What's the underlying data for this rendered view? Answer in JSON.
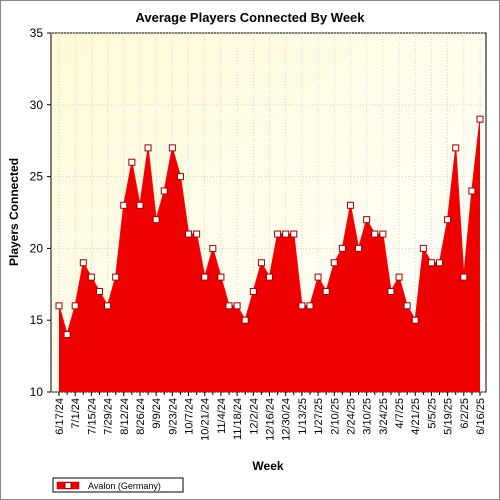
{
  "chart_data": {
    "type": "area",
    "title": "Average Players Connected By Week",
    "xlabel": "Week",
    "ylabel": "Players Connected",
    "ylim": [
      10,
      35
    ],
    "yticks": [
      10,
      15,
      20,
      25,
      30,
      35
    ],
    "grid": true,
    "legend_position": "bottom-left",
    "x_tick_labels": [
      "6/17/24",
      "7/1/24",
      "7/15/24",
      "7/29/24",
      "8/12/24",
      "8/26/24",
      "9/9/24",
      "9/23/24",
      "10/7/24",
      "10/21/24",
      "11/4/24",
      "11/18/24",
      "12/2/24",
      "12/16/24",
      "12/30/24",
      "1/13/25",
      "1/27/25",
      "2/10/25",
      "2/24/25",
      "3/10/25",
      "3/24/25",
      "4/7/25",
      "4/21/25",
      "5/5/25",
      "5/19/25",
      "6/2/25",
      "6/16/25"
    ],
    "x": [
      "6/17/24",
      "6/24/24",
      "7/1/24",
      "7/8/24",
      "7/15/24",
      "7/22/24",
      "7/29/24",
      "8/5/24",
      "8/12/24",
      "8/19/24",
      "8/26/24",
      "9/2/24",
      "9/9/24",
      "9/16/24",
      "9/23/24",
      "9/30/24",
      "10/7/24",
      "10/14/24",
      "10/21/24",
      "10/28/24",
      "11/4/24",
      "11/11/24",
      "11/18/24",
      "11/25/24",
      "12/2/24",
      "12/9/24",
      "12/16/24",
      "12/23/24",
      "12/30/24",
      "1/6/25",
      "1/13/25",
      "1/20/25",
      "1/27/25",
      "2/3/25",
      "2/10/25",
      "2/17/25",
      "2/24/25",
      "3/3/25",
      "3/10/25",
      "3/17/25",
      "3/24/25",
      "3/31/25",
      "4/7/25",
      "4/14/25",
      "4/21/25",
      "4/28/25",
      "5/5/25",
      "5/12/25",
      "5/19/25",
      "5/26/25",
      "6/2/25",
      "6/9/25",
      "6/16/25"
    ],
    "series": [
      {
        "name": "Avalon (Germany)",
        "color": "#ff0000",
        "fill": "#ee0000",
        "values": [
          16,
          14,
          16,
          19,
          18,
          17,
          16,
          18,
          23,
          26,
          23,
          27,
          22,
          24,
          27,
          25,
          21,
          21,
          18,
          20,
          18,
          16,
          16,
          15,
          17,
          19,
          18,
          21,
          21,
          21,
          16,
          16,
          18,
          17,
          19,
          20,
          23,
          20,
          22,
          21,
          21,
          17,
          18,
          16,
          15,
          20,
          19,
          19,
          22,
          27,
          18,
          24,
          29
        ]
      }
    ],
    "colors": {
      "plot_bg_top": "#fffbd8",
      "plot_bg_bottom": "#ffffff",
      "grid": "#c8c8c8",
      "marker_fill": "#ffffff",
      "marker_stroke": "#990000"
    }
  }
}
